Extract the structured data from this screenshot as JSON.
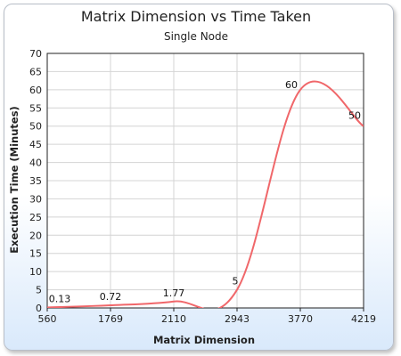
{
  "chart_data": {
    "type": "line",
    "title": "Matrix Dimension vs Time Taken",
    "subtitle": "Single Node",
    "xlabel": "Matrix Dimension",
    "ylabel": "Execution Time (Minutes)",
    "categories": [
      "560",
      "1769",
      "2110",
      "2943",
      "3770",
      "4219"
    ],
    "values": [
      0.13,
      0.72,
      1.77,
      5,
      60,
      50
    ],
    "data_labels": [
      "0.13",
      "0.72",
      "1.77",
      "5",
      "60",
      "50"
    ],
    "ylim": [
      0,
      70
    ],
    "yticks": [
      "0",
      "5",
      "10",
      "15",
      "20",
      "25",
      "30",
      "35",
      "40",
      "45",
      "50",
      "55",
      "60",
      "65",
      "70"
    ],
    "grid": true,
    "smooth": true,
    "series_color": "#f0676a",
    "legend": "none"
  }
}
